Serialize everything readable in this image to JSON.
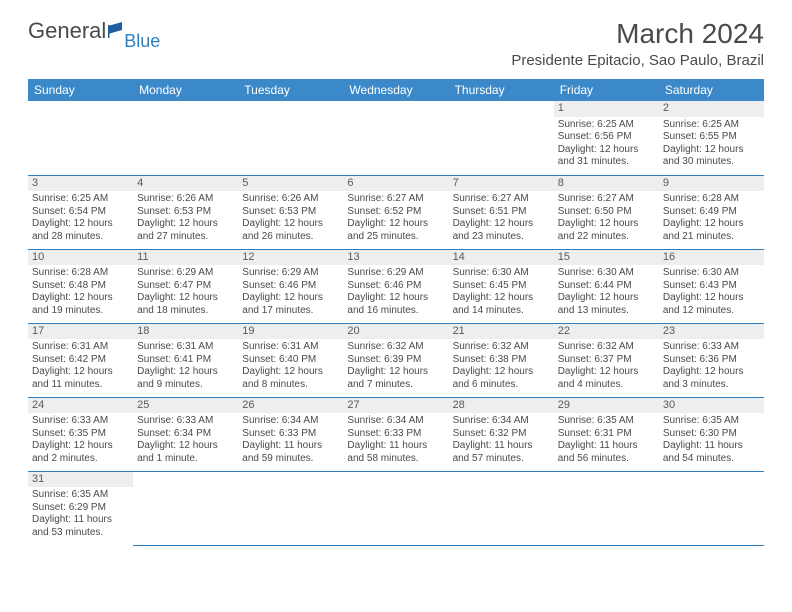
{
  "logo": {
    "general": "General",
    "blue": "Blue"
  },
  "title": "March 2024",
  "location": "Presidente Epitacio, Sao Paulo, Brazil",
  "colors": {
    "header_bg": "#3b89c9",
    "header_text": "#ffffff",
    "border": "#2f7fbf",
    "daynum_bg": "#eceeef",
    "text": "#4a4a4a",
    "logo_blue": "#2f7fbf",
    "flag_fill": "#1f5e9e"
  },
  "week_headers": [
    "Sunday",
    "Monday",
    "Tuesday",
    "Wednesday",
    "Thursday",
    "Friday",
    "Saturday"
  ],
  "weeks": [
    [
      null,
      null,
      null,
      null,
      null,
      {
        "n": "1",
        "sr": "Sunrise: 6:25 AM",
        "ss": "Sunset: 6:56 PM",
        "dl": "Daylight: 12 hours and 31 minutes."
      },
      {
        "n": "2",
        "sr": "Sunrise: 6:25 AM",
        "ss": "Sunset: 6:55 PM",
        "dl": "Daylight: 12 hours and 30 minutes."
      }
    ],
    [
      {
        "n": "3",
        "sr": "Sunrise: 6:25 AM",
        "ss": "Sunset: 6:54 PM",
        "dl": "Daylight: 12 hours and 28 minutes."
      },
      {
        "n": "4",
        "sr": "Sunrise: 6:26 AM",
        "ss": "Sunset: 6:53 PM",
        "dl": "Daylight: 12 hours and 27 minutes."
      },
      {
        "n": "5",
        "sr": "Sunrise: 6:26 AM",
        "ss": "Sunset: 6:53 PM",
        "dl": "Daylight: 12 hours and 26 minutes."
      },
      {
        "n": "6",
        "sr": "Sunrise: 6:27 AM",
        "ss": "Sunset: 6:52 PM",
        "dl": "Daylight: 12 hours and 25 minutes."
      },
      {
        "n": "7",
        "sr": "Sunrise: 6:27 AM",
        "ss": "Sunset: 6:51 PM",
        "dl": "Daylight: 12 hours and 23 minutes."
      },
      {
        "n": "8",
        "sr": "Sunrise: 6:27 AM",
        "ss": "Sunset: 6:50 PM",
        "dl": "Daylight: 12 hours and 22 minutes."
      },
      {
        "n": "9",
        "sr": "Sunrise: 6:28 AM",
        "ss": "Sunset: 6:49 PM",
        "dl": "Daylight: 12 hours and 21 minutes."
      }
    ],
    [
      {
        "n": "10",
        "sr": "Sunrise: 6:28 AM",
        "ss": "Sunset: 6:48 PM",
        "dl": "Daylight: 12 hours and 19 minutes."
      },
      {
        "n": "11",
        "sr": "Sunrise: 6:29 AM",
        "ss": "Sunset: 6:47 PM",
        "dl": "Daylight: 12 hours and 18 minutes."
      },
      {
        "n": "12",
        "sr": "Sunrise: 6:29 AM",
        "ss": "Sunset: 6:46 PM",
        "dl": "Daylight: 12 hours and 17 minutes."
      },
      {
        "n": "13",
        "sr": "Sunrise: 6:29 AM",
        "ss": "Sunset: 6:46 PM",
        "dl": "Daylight: 12 hours and 16 minutes."
      },
      {
        "n": "14",
        "sr": "Sunrise: 6:30 AM",
        "ss": "Sunset: 6:45 PM",
        "dl": "Daylight: 12 hours and 14 minutes."
      },
      {
        "n": "15",
        "sr": "Sunrise: 6:30 AM",
        "ss": "Sunset: 6:44 PM",
        "dl": "Daylight: 12 hours and 13 minutes."
      },
      {
        "n": "16",
        "sr": "Sunrise: 6:30 AM",
        "ss": "Sunset: 6:43 PM",
        "dl": "Daylight: 12 hours and 12 minutes."
      }
    ],
    [
      {
        "n": "17",
        "sr": "Sunrise: 6:31 AM",
        "ss": "Sunset: 6:42 PM",
        "dl": "Daylight: 12 hours and 11 minutes."
      },
      {
        "n": "18",
        "sr": "Sunrise: 6:31 AM",
        "ss": "Sunset: 6:41 PM",
        "dl": "Daylight: 12 hours and 9 minutes."
      },
      {
        "n": "19",
        "sr": "Sunrise: 6:31 AM",
        "ss": "Sunset: 6:40 PM",
        "dl": "Daylight: 12 hours and 8 minutes."
      },
      {
        "n": "20",
        "sr": "Sunrise: 6:32 AM",
        "ss": "Sunset: 6:39 PM",
        "dl": "Daylight: 12 hours and 7 minutes."
      },
      {
        "n": "21",
        "sr": "Sunrise: 6:32 AM",
        "ss": "Sunset: 6:38 PM",
        "dl": "Daylight: 12 hours and 6 minutes."
      },
      {
        "n": "22",
        "sr": "Sunrise: 6:32 AM",
        "ss": "Sunset: 6:37 PM",
        "dl": "Daylight: 12 hours and 4 minutes."
      },
      {
        "n": "23",
        "sr": "Sunrise: 6:33 AM",
        "ss": "Sunset: 6:36 PM",
        "dl": "Daylight: 12 hours and 3 minutes."
      }
    ],
    [
      {
        "n": "24",
        "sr": "Sunrise: 6:33 AM",
        "ss": "Sunset: 6:35 PM",
        "dl": "Daylight: 12 hours and 2 minutes."
      },
      {
        "n": "25",
        "sr": "Sunrise: 6:33 AM",
        "ss": "Sunset: 6:34 PM",
        "dl": "Daylight: 12 hours and 1 minute."
      },
      {
        "n": "26",
        "sr": "Sunrise: 6:34 AM",
        "ss": "Sunset: 6:33 PM",
        "dl": "Daylight: 11 hours and 59 minutes."
      },
      {
        "n": "27",
        "sr": "Sunrise: 6:34 AM",
        "ss": "Sunset: 6:33 PM",
        "dl": "Daylight: 11 hours and 58 minutes."
      },
      {
        "n": "28",
        "sr": "Sunrise: 6:34 AM",
        "ss": "Sunset: 6:32 PM",
        "dl": "Daylight: 11 hours and 57 minutes."
      },
      {
        "n": "29",
        "sr": "Sunrise: 6:35 AM",
        "ss": "Sunset: 6:31 PM",
        "dl": "Daylight: 11 hours and 56 minutes."
      },
      {
        "n": "30",
        "sr": "Sunrise: 6:35 AM",
        "ss": "Sunset: 6:30 PM",
        "dl": "Daylight: 11 hours and 54 minutes."
      }
    ],
    [
      {
        "n": "31",
        "sr": "Sunrise: 6:35 AM",
        "ss": "Sunset: 6:29 PM",
        "dl": "Daylight: 11 hours and 53 minutes."
      },
      null,
      null,
      null,
      null,
      null,
      null
    ]
  ]
}
